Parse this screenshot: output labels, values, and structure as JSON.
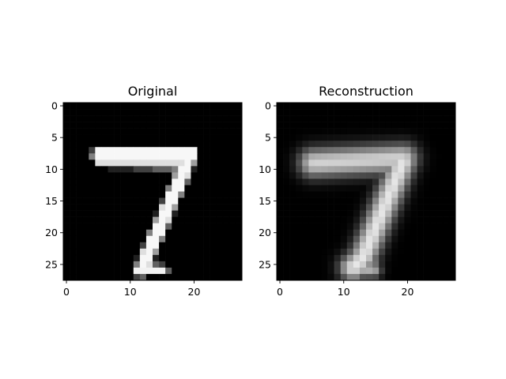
{
  "figure": {
    "background": "#ffffff"
  },
  "chart_data": [
    {
      "type": "heatmap",
      "title": "Original",
      "colormap": "gray",
      "rows": 28,
      "cols": 28,
      "xlim": [
        -0.5,
        27.5
      ],
      "ylim": [
        27.5,
        -0.5
      ],
      "xticks": [
        0,
        10,
        20
      ],
      "yticks": [
        0,
        5,
        10,
        15,
        20,
        25
      ],
      "xlabel": "",
      "ylabel": "",
      "description": "handwritten digit 7 with sharp pixel edges",
      "strokes": [
        {
          "x0": 5.0,
          "y0": 7.7,
          "x1": 19.5,
          "y1": 7.5,
          "width": 1.4,
          "intensity": 0.97
        },
        {
          "x0": 5.2,
          "y0": 9.0,
          "x1": 18.5,
          "y1": 9.3,
          "width": 1.0,
          "intensity": 0.85
        },
        {
          "x0": 19.5,
          "y0": 7.7,
          "x1": 12.3,
          "y1": 24.5,
          "width": 1.5,
          "intensity": 0.97
        },
        {
          "x0": 12.3,
          "y0": 24.5,
          "x1": 11.6,
          "y1": 26.0,
          "width": 1.3,
          "intensity": 0.95
        },
        {
          "x0": 11.5,
          "y0": 25.6,
          "x1": 15.2,
          "y1": 25.9,
          "width": 1.0,
          "intensity": 0.95
        }
      ]
    },
    {
      "type": "heatmap",
      "title": "Reconstruction",
      "colormap": "gray",
      "rows": 28,
      "cols": 28,
      "xlim": [
        -0.5,
        27.5
      ],
      "ylim": [
        27.5,
        -0.5
      ],
      "xticks": [
        0,
        10,
        20
      ],
      "yticks": [
        0,
        5,
        10,
        15,
        20,
        25
      ],
      "xlabel": "",
      "ylabel": "",
      "description": "blurred reconstruction of the digit 7",
      "strokes": [
        {
          "x0": 5.3,
          "y0": 9.0,
          "x1": 19.3,
          "y1": 8.3,
          "width": 2.2,
          "intensity": 0.82
        },
        {
          "x0": 19.3,
          "y0": 8.8,
          "x1": 13.0,
          "y1": 24.0,
          "width": 2.0,
          "intensity": 0.9
        },
        {
          "x0": 13.0,
          "y0": 24.0,
          "x1": 11.5,
          "y1": 25.5,
          "width": 2.0,
          "intensity": 0.9
        },
        {
          "x0": 10.5,
          "y0": 25.5,
          "x1": 14.5,
          "y1": 25.8,
          "width": 1.3,
          "intensity": 0.7
        }
      ]
    }
  ]
}
